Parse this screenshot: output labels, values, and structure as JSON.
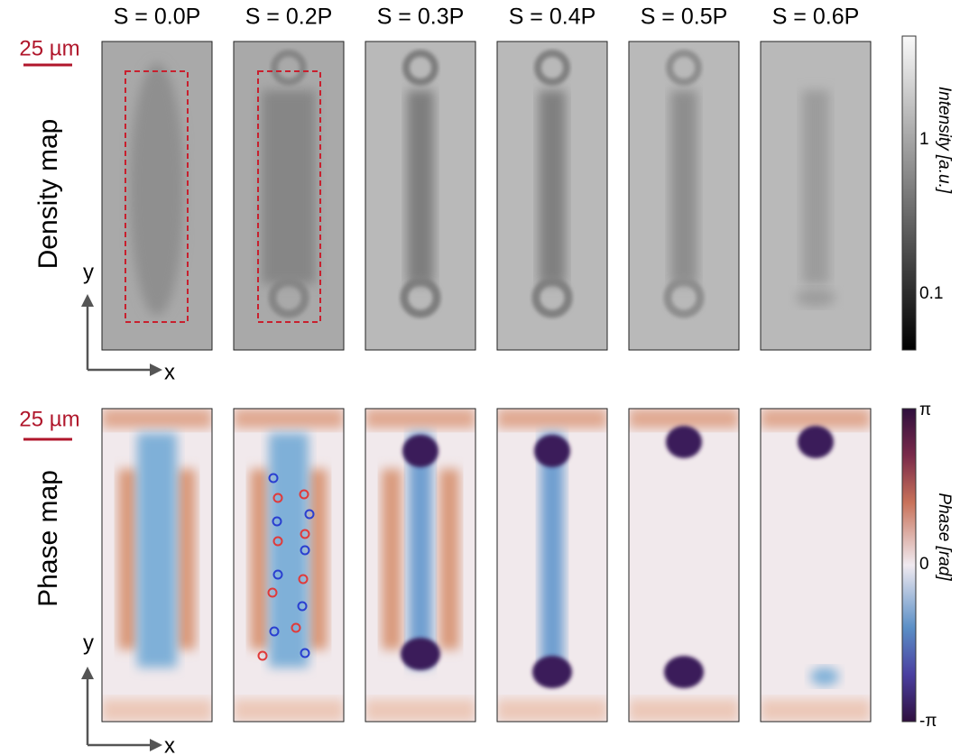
{
  "columns": [
    "S = 0.0P",
    "S = 0.2P",
    "S = 0.3P",
    "S = 0.4P",
    "S = 0.5P",
    "S = 0.6P"
  ],
  "rows": [
    "Density map",
    "Phase map"
  ],
  "scale_bar": "25 µm",
  "axes": {
    "x": "x",
    "y": "y"
  },
  "colorbars": [
    {
      "label": "Intensity [a.u.]",
      "ticks": [
        "1",
        "0.1"
      ]
    },
    {
      "label": "Phase [rad]",
      "ticks": [
        "π",
        "0",
        "-π"
      ]
    }
  ]
}
